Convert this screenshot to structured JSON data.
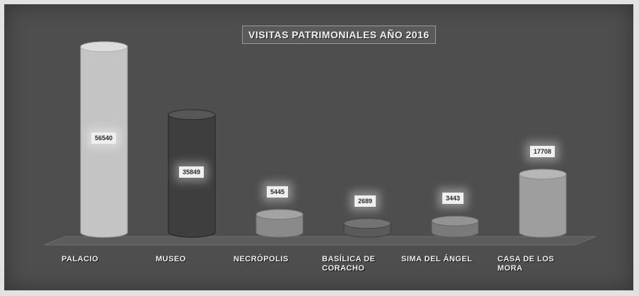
{
  "chart_data": {
    "type": "bar",
    "title": "VISITAS PATRIMONIALES AÑO 2016",
    "categories": [
      "PALACIO",
      "MUSEO",
      "NECRÓPOLIS",
      "BASÍLICA DE\nCORACHO",
      "SIMA DEL ÁNGEL",
      "CASA DE LOS\nMORA"
    ],
    "values": [
      56540,
      35849,
      5445,
      2689,
      3443,
      17708
    ],
    "value_labels": [
      "56540",
      "35849",
      "5445",
      "2689",
      "3443",
      "17708"
    ],
    "colors": [
      "#c4c4c4",
      "#3e3e3e",
      "#8a8a8a",
      "#5a5a5a",
      "#7a7a7a",
      "#9e9e9e"
    ],
    "ylim": [
      0,
      60000
    ],
    "grid": false,
    "legend": "none"
  }
}
